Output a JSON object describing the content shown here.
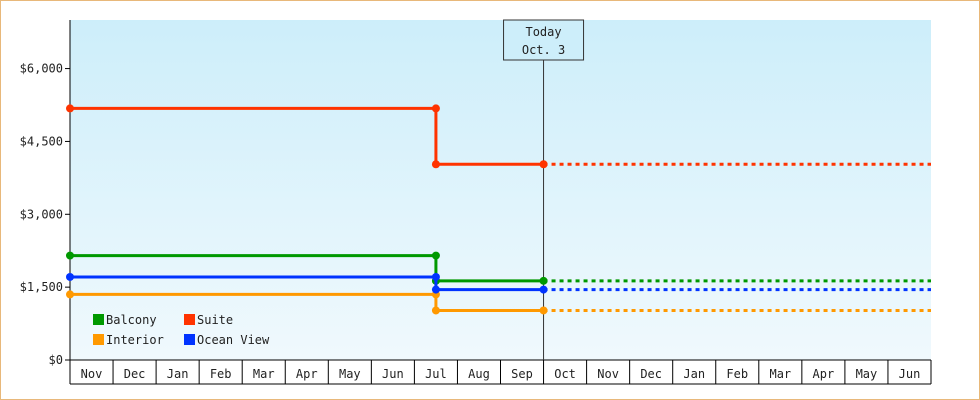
{
  "chart_data": {
    "type": "line",
    "step": true,
    "x_months": [
      "Nov",
      "Dec",
      "Jan",
      "Feb",
      "Mar",
      "Apr",
      "May",
      "Jun",
      "Jul",
      "Aug",
      "Sep",
      "Oct",
      "Nov",
      "Dec",
      "Jan",
      "Feb",
      "Mar",
      "Apr",
      "May",
      "Jun"
    ],
    "y_ticks": [
      "$0",
      "$1,500",
      "$3,000",
      "$4,500",
      "$6,000"
    ],
    "ylim": [
      0,
      7000
    ],
    "grid": false,
    "legend_position": "bottom-left",
    "today_marker": {
      "line1": "Today",
      "line2": "Oct. 3",
      "x_month_pos": 11.0
    },
    "series": [
      {
        "name": "Balcony",
        "color": "#009900",
        "points": [
          {
            "x": 0.0,
            "y": 2150
          },
          {
            "x": 8.5,
            "y": 2150
          },
          {
            "x": 8.5,
            "y": 1630
          },
          {
            "x": 11.0,
            "y": 1630
          }
        ],
        "forecast_to": 20.0,
        "forecast_y": 1630
      },
      {
        "name": "Suite",
        "color": "#ff3300",
        "points": [
          {
            "x": 0.0,
            "y": 5180
          },
          {
            "x": 8.5,
            "y": 5180
          },
          {
            "x": 8.5,
            "y": 4030
          },
          {
            "x": 11.0,
            "y": 4030
          }
        ],
        "forecast_to": 20.0,
        "forecast_y": 4030
      },
      {
        "name": "Interior",
        "color": "#ff9900",
        "points": [
          {
            "x": 0.0,
            "y": 1350
          },
          {
            "x": 8.5,
            "y": 1350
          },
          {
            "x": 8.5,
            "y": 1020
          },
          {
            "x": 11.0,
            "y": 1020
          }
        ],
        "forecast_to": 20.0,
        "forecast_y": 1020
      },
      {
        "name": "Ocean View",
        "color": "#0033ff",
        "points": [
          {
            "x": 0.0,
            "y": 1710
          },
          {
            "x": 8.5,
            "y": 1710
          },
          {
            "x": 8.5,
            "y": 1450
          },
          {
            "x": 11.0,
            "y": 1450
          }
        ],
        "forecast_to": 20.0,
        "forecast_y": 1450
      }
    ],
    "legend_rows": [
      [
        "Balcony",
        "Suite"
      ],
      [
        "Interior",
        "Ocean View"
      ]
    ]
  }
}
